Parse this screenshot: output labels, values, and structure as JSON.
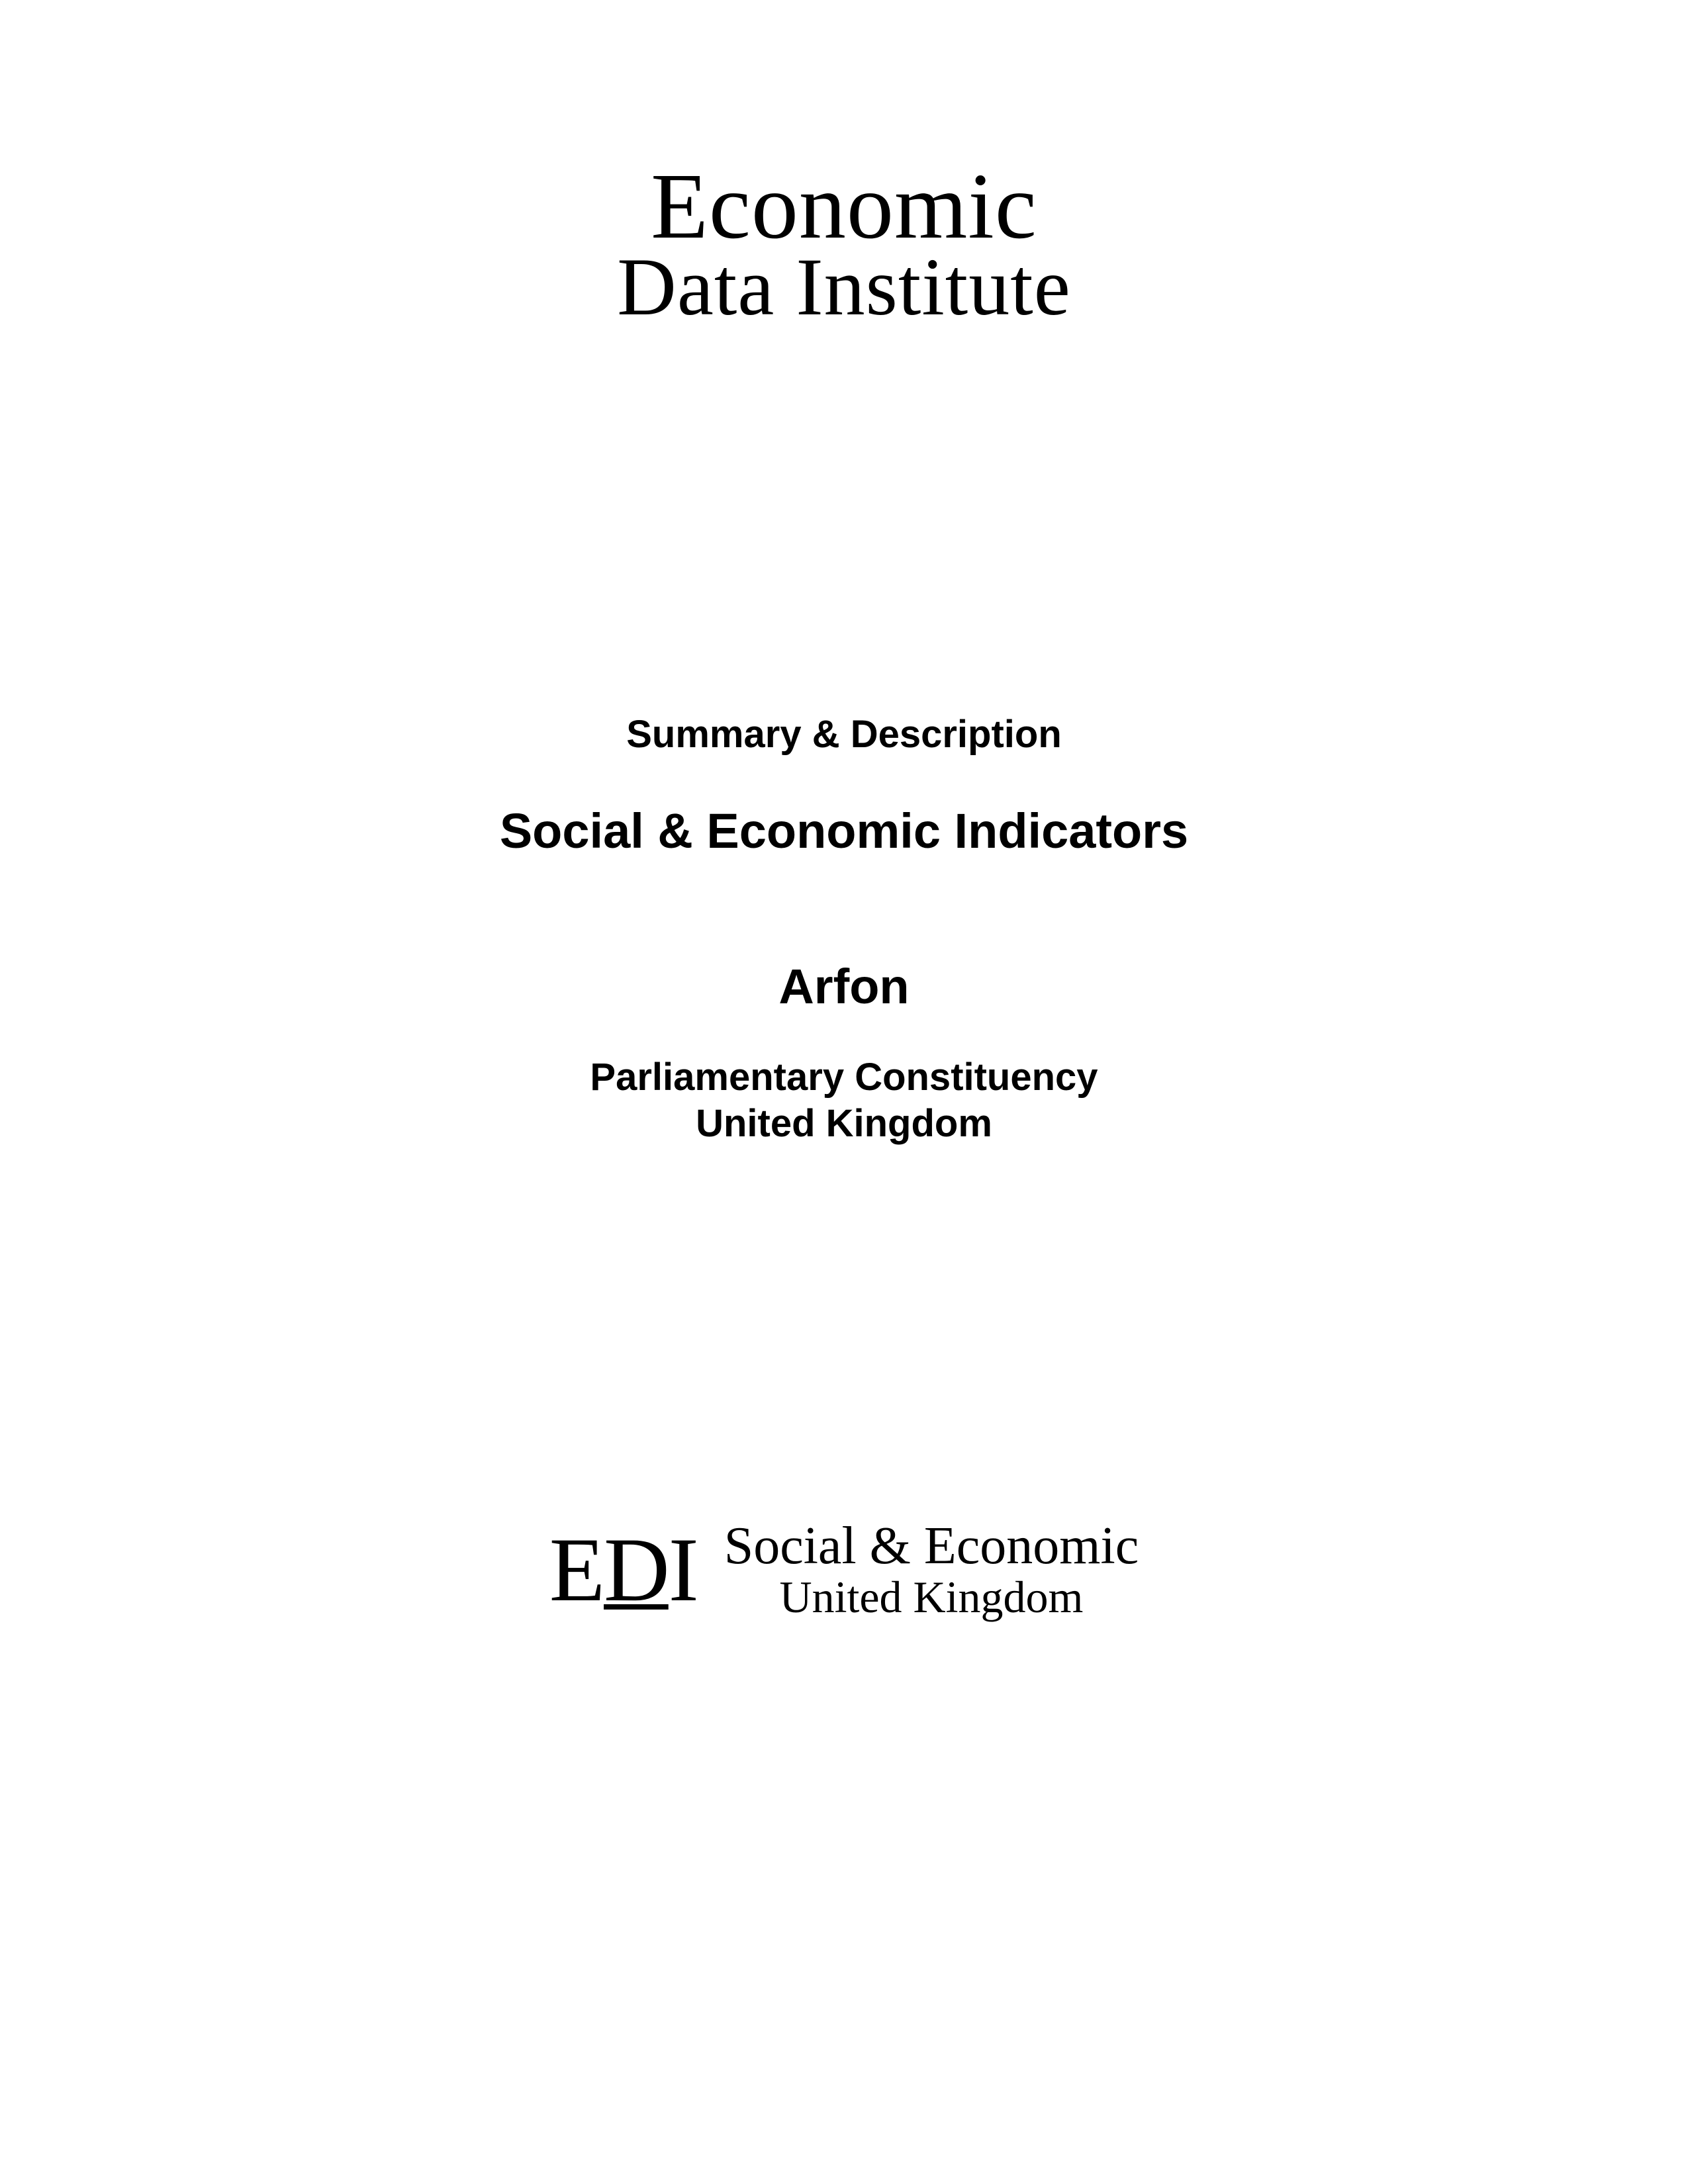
{
  "topLogo": {
    "line1": "Economic",
    "line2": "Data Institute"
  },
  "subtitle": {
    "summaryLine": "Summary & Description",
    "mainTitle": "Social & Economic Indicators",
    "locationName": "Arfon",
    "constituencyLine1": "Parliamentary Constituency",
    "constituencyLine2": "United Kingdom"
  },
  "bottomLogo": {
    "mark": {
      "e": "E",
      "d": "D",
      "i": "I"
    },
    "line1": "Social & Economic",
    "line2": "United Kingdom"
  },
  "styling": {
    "pageWidth": 2550,
    "pageHeight": 3300,
    "backgroundColor": "#ffffff",
    "textColor": "#000000",
    "topLogoFont": "Georgia, Times New Roman, serif",
    "topLogoLine1Size": 142,
    "topLogoLine2Size": 124,
    "bodyFont": "Arial, Helvetica, sans-serif",
    "summaryFontSize": 58,
    "mainTitleFontSize": 74,
    "locationFontSize": 74,
    "constituencyFontSize": 58,
    "ediMarkFontSize": 138,
    "bottomLogoLine1Size": 80,
    "bottomLogoLine2Size": 68
  }
}
